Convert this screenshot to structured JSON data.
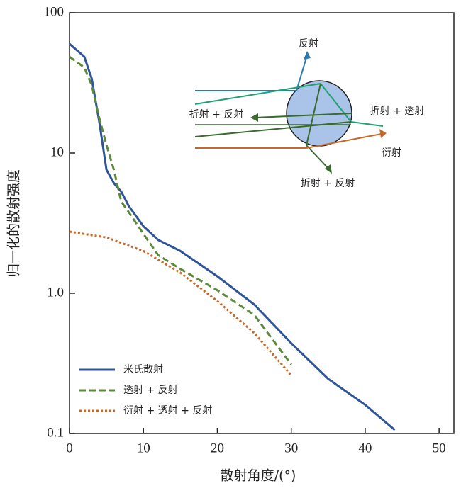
{
  "chart_data": {
    "type": "line",
    "log_y": true,
    "x_label": "散射角度/(°)",
    "y_label": "归一化的散射强度",
    "xlim": [
      0,
      52
    ],
    "xticks": [
      0,
      10,
      20,
      30,
      40,
      50
    ],
    "ylim": [
      0.1,
      100
    ],
    "yticks": [
      100,
      10,
      {
        "value": 1,
        "label": "1.0"
      },
      0.1
    ],
    "legend": "lower left",
    "series": [
      {
        "name": "米氏散射",
        "color": "#2f5597",
        "style": "solid",
        "x": [
          0,
          2,
          3,
          4,
          5,
          6,
          7,
          8,
          10,
          12,
          15,
          20,
          25,
          30,
          35,
          40,
          44
        ],
        "values": [
          60,
          48.6,
          34,
          17,
          7.6,
          6.1,
          5.3,
          4.2,
          3.0,
          2.4,
          2.0,
          1.32,
          0.83,
          0.44,
          0.245,
          0.16,
          0.106
        ]
      },
      {
        "name": "透射 + 反射",
        "color": "#5b8a3a",
        "style": "dashed",
        "x": [
          0,
          2,
          3,
          4,
          5,
          6,
          7,
          8,
          10,
          12,
          15,
          20,
          25,
          30
        ],
        "values": [
          48.6,
          40.8,
          30.5,
          18,
          11.4,
          7.6,
          4.5,
          3.8,
          2.65,
          1.87,
          1.49,
          1.05,
          0.7,
          0.31
        ]
      },
      {
        "name": "衍射 + 透射 + 反射",
        "color": "#c8672a",
        "style": "dotted",
        "x": [
          0,
          5,
          10,
          15,
          20,
          25,
          30
        ],
        "values": [
          2.75,
          2.5,
          2.0,
          1.4,
          0.88,
          0.52,
          0.26
        ]
      }
    ],
    "annotations": [
      "反射",
      "折射 + 反射",
      "折射 + 透射",
      "衍射",
      "折射 + 反射"
    ]
  }
}
